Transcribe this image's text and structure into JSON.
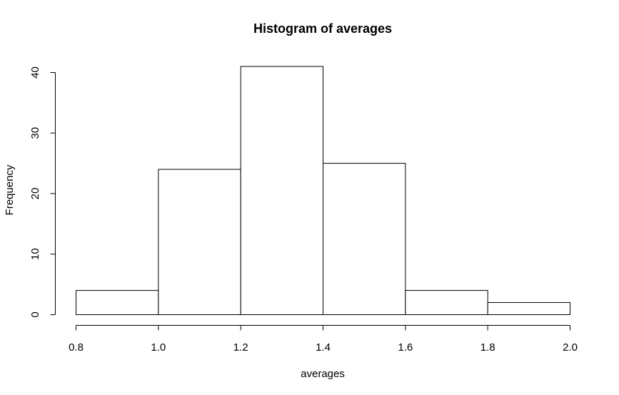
{
  "chart_data": {
    "type": "bar",
    "title": "Histogram of averages",
    "xlabel": "averages",
    "ylabel": "Frequency",
    "bins": [
      {
        "start": 0.8,
        "end": 1.0,
        "count": 4
      },
      {
        "start": 1.0,
        "end": 1.2,
        "count": 24
      },
      {
        "start": 1.2,
        "end": 1.4,
        "count": 41
      },
      {
        "start": 1.4,
        "end": 1.6,
        "count": 25
      },
      {
        "start": 1.6,
        "end": 1.8,
        "count": 4
      },
      {
        "start": 1.8,
        "end": 2.0,
        "count": 2
      }
    ],
    "x_ticks": [
      "0.8",
      "1.0",
      "1.2",
      "1.4",
      "1.6",
      "1.8",
      "2.0"
    ],
    "y_ticks": [
      "0",
      "10",
      "20",
      "30",
      "40"
    ],
    "xlim": [
      0.8,
      2.0
    ],
    "ylim": [
      0,
      40
    ],
    "grid": false,
    "colors": {
      "bar_fill": "#ffffff",
      "bar_stroke": "#000000",
      "background": "#ffffff"
    }
  }
}
